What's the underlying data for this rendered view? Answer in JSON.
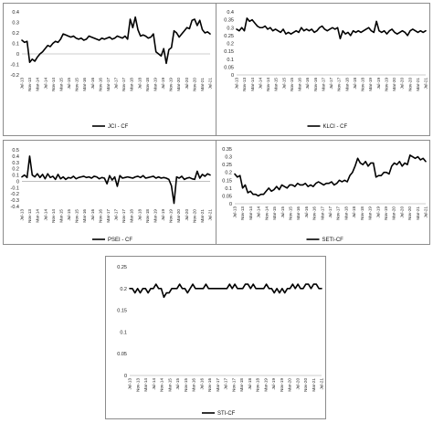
{
  "x_tick_labels": [
    "Jul-13",
    "Nov-13",
    "Mar-14",
    "Jul-14",
    "Nov-14",
    "Mar-15",
    "Jul-15",
    "Nov-15",
    "Mar-16",
    "Jul-16",
    "Nov-16",
    "Mar-17",
    "Jul-17",
    "Nov-17",
    "Mar-18",
    "Jul-18",
    "Nov-18",
    "Mar-19",
    "Jul-19",
    "Nov-19",
    "Mar-20",
    "Jul-20",
    "Nov-20",
    "Mar-21",
    "Jul-21"
  ],
  "chart_data": [
    {
      "type": "line",
      "legend": "JCI - CF",
      "ylim": [
        -0.2,
        0.4
      ],
      "yticks": [
        "-0.2",
        "-0.1",
        "0",
        "0.1",
        "0.2",
        "0.3",
        "0.4"
      ],
      "series": [
        {
          "name": "JCI - CF",
          "values": [
            0.13,
            0.11,
            0.12,
            -0.08,
            -0.05,
            -0.07,
            -0.03,
            0.0,
            0.02,
            0.05,
            0.08,
            0.07,
            0.1,
            0.12,
            0.11,
            0.14,
            0.19,
            0.18,
            0.17,
            0.16,
            0.17,
            0.15,
            0.14,
            0.15,
            0.13,
            0.14,
            0.17,
            0.16,
            0.15,
            0.14,
            0.13,
            0.15,
            0.14,
            0.15,
            0.16,
            0.14,
            0.15,
            0.17,
            0.16,
            0.15,
            0.17,
            0.14,
            0.33,
            0.25,
            0.35,
            0.23,
            0.17,
            0.18,
            0.17,
            0.15,
            0.16,
            0.19,
            0.02,
            0.0,
            -0.02,
            0.05,
            -0.09,
            0.04,
            0.06,
            0.22,
            0.2,
            0.16,
            0.19,
            0.22,
            0.25,
            0.24,
            0.32,
            0.33,
            0.27,
            0.32,
            0.23,
            0.2,
            0.21,
            0.19
          ]
        }
      ]
    },
    {
      "type": "line",
      "legend": "KLCI - CF",
      "ylim": [
        0,
        0.4
      ],
      "yticks": [
        "0",
        "0.05",
        "0.1",
        "0.15",
        "0.2",
        "0.25",
        "0.3",
        "0.35",
        "0.4"
      ],
      "series": [
        {
          "name": "KLCI - CF",
          "values": [
            0.29,
            0.28,
            0.3,
            0.28,
            0.36,
            0.34,
            0.35,
            0.33,
            0.31,
            0.3,
            0.3,
            0.31,
            0.29,
            0.3,
            0.28,
            0.29,
            0.28,
            0.27,
            0.29,
            0.26,
            0.27,
            0.26,
            0.27,
            0.28,
            0.27,
            0.3,
            0.28,
            0.29,
            0.28,
            0.29,
            0.27,
            0.28,
            0.3,
            0.31,
            0.29,
            0.28,
            0.29,
            0.3,
            0.29,
            0.3,
            0.23,
            0.28,
            0.26,
            0.27,
            0.25,
            0.28,
            0.27,
            0.28,
            0.27,
            0.28,
            0.29,
            0.3,
            0.28,
            0.27,
            0.34,
            0.28,
            0.27,
            0.28,
            0.26,
            0.28,
            0.29,
            0.27,
            0.26,
            0.27,
            0.28,
            0.27,
            0.25,
            0.28,
            0.29,
            0.28,
            0.27,
            0.28,
            0.27,
            0.28
          ]
        }
      ]
    },
    {
      "type": "line",
      "legend": "PSEI - CF",
      "ylim": [
        -0.4,
        0.5
      ],
      "yticks": [
        "-0.4",
        "-0.3",
        "-0.2",
        "-0.1",
        "0",
        "0.1",
        "0.2",
        "0.3",
        "0.4",
        "0.5"
      ],
      "series": [
        {
          "name": "PSEI - CF",
          "values": [
            0.07,
            0.1,
            0.06,
            0.4,
            0.1,
            0.07,
            0.12,
            0.06,
            0.11,
            0.04,
            0.12,
            0.06,
            0.08,
            0.03,
            0.11,
            0.04,
            0.07,
            0.03,
            0.06,
            0.05,
            0.08,
            0.04,
            0.06,
            0.07,
            0.08,
            0.06,
            0.07,
            0.05,
            0.08,
            0.07,
            0.04,
            0.06,
            0.05,
            -0.04,
            0.09,
            0.02,
            0.07,
            -0.08,
            0.09,
            0.05,
            0.06,
            0.07,
            0.06,
            0.05,
            0.07,
            0.08,
            0.06,
            0.09,
            0.05,
            0.06,
            0.07,
            0.08,
            0.05,
            0.07,
            0.05,
            0.06,
            0.05,
            0.03,
            -0.07,
            -0.35,
            0.07,
            0.05,
            0.08,
            0.03,
            0.05,
            0.06,
            0.04,
            0.03,
            0.16,
            0.05,
            0.11,
            0.08,
            0.12,
            0.1
          ]
        }
      ]
    },
    {
      "type": "line",
      "legend": "SETI-CF",
      "ylim": [
        0,
        0.35
      ],
      "yticks": [
        "0",
        "0.05",
        "0.1",
        "0.15",
        "0.2",
        "0.25",
        "0.3",
        "0.35"
      ],
      "series": [
        {
          "name": "SETI-CF",
          "values": [
            0.19,
            0.17,
            0.18,
            0.1,
            0.12,
            0.07,
            0.08,
            0.06,
            0.06,
            0.05,
            0.06,
            0.06,
            0.08,
            0.1,
            0.08,
            0.09,
            0.11,
            0.09,
            0.12,
            0.11,
            0.1,
            0.12,
            0.12,
            0.11,
            0.13,
            0.12,
            0.12,
            0.13,
            0.11,
            0.12,
            0.11,
            0.13,
            0.14,
            0.13,
            0.12,
            0.13,
            0.13,
            0.14,
            0.12,
            0.13,
            0.15,
            0.14,
            0.15,
            0.14,
            0.18,
            0.2,
            0.24,
            0.29,
            0.26,
            0.25,
            0.27,
            0.24,
            0.26,
            0.26,
            0.17,
            0.18,
            0.18,
            0.2,
            0.2,
            0.19,
            0.24,
            0.26,
            0.25,
            0.27,
            0.24,
            0.26,
            0.25,
            0.31,
            0.3,
            0.29,
            0.3,
            0.28,
            0.29,
            0.27
          ]
        }
      ]
    },
    {
      "type": "line",
      "legend": "STI-CF",
      "ylim": [
        0,
        0.25
      ],
      "yticks": [
        "0",
        "0.05",
        "0.1",
        "0.15",
        "0.2",
        "0.25"
      ],
      "series": [
        {
          "name": "STI-CF",
          "values": [
            0.2,
            0.2,
            0.19,
            0.2,
            0.19,
            0.2,
            0.2,
            0.19,
            0.2,
            0.2,
            0.21,
            0.2,
            0.2,
            0.18,
            0.19,
            0.19,
            0.2,
            0.2,
            0.2,
            0.21,
            0.2,
            0.2,
            0.19,
            0.2,
            0.21,
            0.2,
            0.2,
            0.2,
            0.2,
            0.21,
            0.2,
            0.2,
            0.2,
            0.2,
            0.2,
            0.2,
            0.2,
            0.2,
            0.21,
            0.2,
            0.21,
            0.2,
            0.2,
            0.2,
            0.21,
            0.21,
            0.2,
            0.21,
            0.2,
            0.2,
            0.2,
            0.2,
            0.21,
            0.2,
            0.2,
            0.19,
            0.2,
            0.19,
            0.2,
            0.19,
            0.2,
            0.2,
            0.21,
            0.2,
            0.21,
            0.2,
            0.2,
            0.21,
            0.21,
            0.2,
            0.21,
            0.21,
            0.2,
            0.2
          ]
        }
      ]
    }
  ]
}
